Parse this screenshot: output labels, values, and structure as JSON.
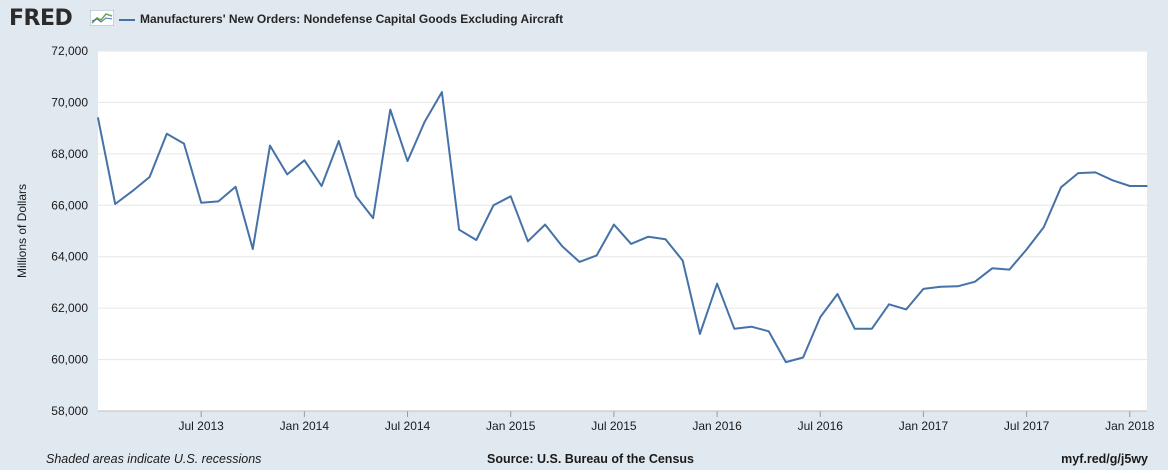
{
  "header": {
    "logo": "FRED",
    "logo_icon": "line-chart-icon"
  },
  "footer": {
    "note": "Shaded areas indicate U.S. recessions",
    "source": "Source: U.S. Bureau of the Census",
    "url": "myf.red/g/j5wy"
  },
  "colors": {
    "line": "#4572a7",
    "background": "#e1e9f0",
    "plot_background": "#ffffff",
    "grid": "#e6e6e6"
  },
  "chart_data": {
    "type": "line",
    "title": "",
    "ylabel": "Millions of Dollars",
    "xlabel": "",
    "ylim": [
      58000,
      72000
    ],
    "yticks": [
      58000,
      60000,
      62000,
      64000,
      66000,
      68000,
      70000,
      72000
    ],
    "ytick_labels": [
      "58,000",
      "60,000",
      "62,000",
      "64,000",
      "66,000",
      "68,000",
      "70,000",
      "72,000"
    ],
    "xlim": [
      "2013-01",
      "2018-02"
    ],
    "xticks": [
      {
        "date": "2013-07",
        "label": "Jul 2013"
      },
      {
        "date": "2014-01",
        "label": "Jan 2014"
      },
      {
        "date": "2014-07",
        "label": "Jul 2014"
      },
      {
        "date": "2015-01",
        "label": "Jan 2015"
      },
      {
        "date": "2015-07",
        "label": "Jul 2015"
      },
      {
        "date": "2016-01",
        "label": "Jan 2016"
      },
      {
        "date": "2016-07",
        "label": "Jul 2016"
      },
      {
        "date": "2017-01",
        "label": "Jan 2017"
      },
      {
        "date": "2017-07",
        "label": "Jul 2017"
      },
      {
        "date": "2018-01",
        "label": "Jan 2018"
      }
    ],
    "grid": true,
    "legend": "top-left",
    "series": [
      {
        "name": "Manufacturers' New Orders: Nondefense Capital Goods Excluding Aircraft",
        "x": [
          "2013-01",
          "2013-02",
          "2013-03",
          "2013-04",
          "2013-05",
          "2013-06",
          "2013-07",
          "2013-08",
          "2013-09",
          "2013-10",
          "2013-11",
          "2013-12",
          "2014-01",
          "2014-02",
          "2014-03",
          "2014-04",
          "2014-05",
          "2014-06",
          "2014-07",
          "2014-08",
          "2014-09",
          "2014-10",
          "2014-11",
          "2014-12",
          "2015-01",
          "2015-02",
          "2015-03",
          "2015-04",
          "2015-05",
          "2015-06",
          "2015-07",
          "2015-08",
          "2015-09",
          "2015-10",
          "2015-11",
          "2015-12",
          "2016-01",
          "2016-02",
          "2016-03",
          "2016-04",
          "2016-05",
          "2016-06",
          "2016-07",
          "2016-08",
          "2016-09",
          "2016-10",
          "2016-11",
          "2016-12",
          "2017-01",
          "2017-02",
          "2017-03",
          "2017-04",
          "2017-05",
          "2017-06",
          "2017-07",
          "2017-08",
          "2017-09",
          "2017-10",
          "2017-11",
          "2017-12",
          "2018-01",
          "2018-02"
        ],
        "values": [
          69400,
          66050,
          66550,
          67100,
          68780,
          68400,
          66100,
          66150,
          66720,
          64300,
          68320,
          67200,
          67750,
          66750,
          68500,
          66350,
          65500,
          69720,
          67720,
          69250,
          70400,
          65050,
          64650,
          66000,
          66350,
          64600,
          65250,
          64400,
          63800,
          64050,
          65250,
          64500,
          64780,
          64680,
          63850,
          61000,
          62950,
          61200,
          61280,
          61100,
          59900,
          60080,
          61650,
          62550,
          61200,
          61200,
          62150,
          61950,
          62750,
          62830,
          62850,
          63030,
          63550,
          63500,
          64280,
          65150,
          66700,
          67250,
          67280,
          66970,
          66750,
          66750
        ]
      }
    ]
  }
}
